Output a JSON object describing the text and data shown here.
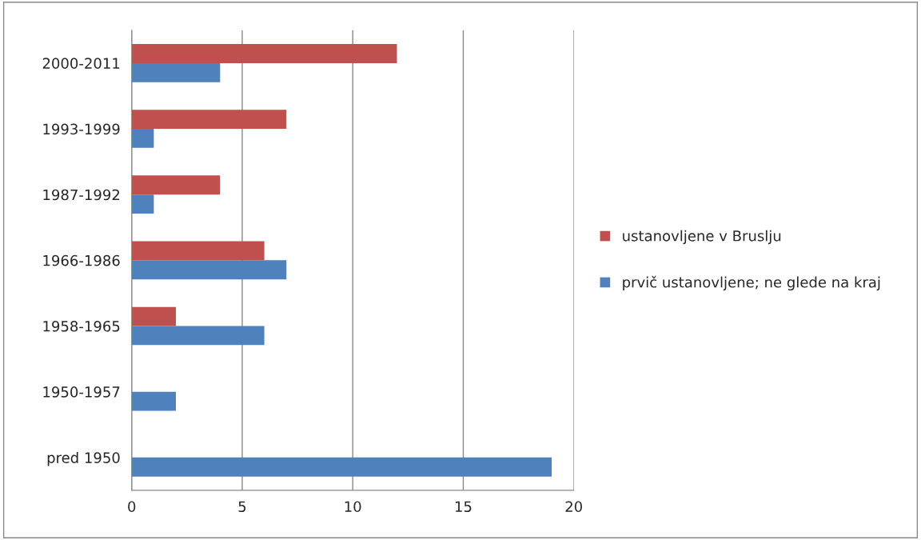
{
  "chart_data": {
    "type": "bar",
    "orientation": "horizontal",
    "categories": [
      "2000-2011",
      "1993-1999",
      "1987-1992",
      "1966-1986",
      "1958-1965",
      "1950-1957",
      "pred 1950"
    ],
    "series": [
      {
        "name": "ustanovljene v Bruslju",
        "color": "#c0504d",
        "values": [
          12,
          7,
          4,
          6,
          2,
          null,
          null
        ]
      },
      {
        "name": "prvič ustanovljene; ne glede na kraj",
        "color": "#4f81bd",
        "values": [
          4,
          1,
          1,
          7,
          6,
          2,
          19
        ]
      }
    ],
    "xlim": [
      0,
      20
    ],
    "xticks": [
      0,
      5,
      10,
      15,
      20
    ],
    "grid": "x",
    "legend": "right"
  }
}
